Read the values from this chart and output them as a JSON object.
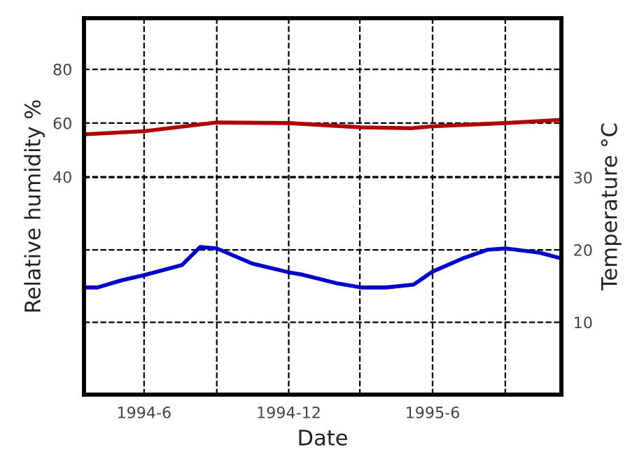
{
  "chart_data": {
    "type": "line",
    "xlabel": "Date",
    "ylabel": "Relative humidity %",
    "y2label": "Temperature °C",
    "xlim": [
      "1994-03-17",
      "1995-11-11"
    ],
    "xticks": [
      {
        "value": "1994-06-01",
        "label": "1994-6"
      },
      {
        "value": "1994-09-01",
        "label": null
      },
      {
        "value": "1994-12-01",
        "label": "1994-12"
      },
      {
        "value": "1995-03-01",
        "label": null
      },
      {
        "value": "1995-06-01",
        "label": "1995-6"
      },
      {
        "value": "1995-09-01",
        "label": null
      }
    ],
    "ylim": [
      -41,
      99
    ],
    "yticks": [
      40,
      60,
      80
    ],
    "y2lim": [
      0,
      52
    ],
    "y2ticks": [
      10,
      20,
      30
    ],
    "grid": true,
    "legend": false,
    "series": [
      {
        "color": "#b00000",
        "x": [
          "1994-03-17",
          "1994-06-01",
          "1994-09-01",
          "1994-12-01",
          "1995-03-03",
          "1995-05-05",
          "1995-06-01",
          "1995-09-01",
          "1995-11-11"
        ],
        "values": [
          55.8,
          57,
          60.2,
          60,
          58.4,
          58.1,
          58.8,
          60,
          61.2
        ]
      },
      {
        "color": "#0000cc",
        "axis": "y2",
        "x": [
          "1994-03-17",
          "1994-04-03",
          "1994-05-04",
          "1994-06-01",
          "1994-07-19",
          "1994-08-11",
          "1994-09-01",
          "1994-10-16",
          "1994-12-01",
          "1994-12-17",
          "1995-01-30",
          "1995-03-03",
          "1995-04-03",
          "1995-05-08",
          "1995-06-01",
          "1995-07-09",
          "1995-08-09",
          "1995-09-01",
          "1995-10-15",
          "1995-11-11"
        ],
        "values": [
          14.8,
          14.8,
          15.8,
          16.5,
          17.9,
          20.4,
          20.2,
          18.1,
          16.9,
          16.6,
          15.4,
          14.8,
          14.8,
          15.2,
          17.0,
          18.8,
          20,
          20.2,
          19.6,
          18.8
        ]
      }
    ]
  }
}
